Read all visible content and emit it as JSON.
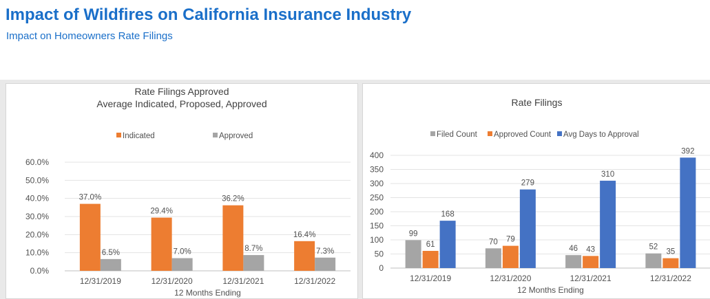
{
  "header": {
    "title": "Impact of Wildfires on California Insurance Industry",
    "subtitle": "Impact on Homeowners Rate Filings"
  },
  "colors": {
    "indicated": "#ed7d31",
    "approved_gray": "#a5a5a5",
    "avg_days": "#4472c4",
    "title_blue": "#1a6fc9"
  },
  "chart_data": [
    {
      "type": "bar",
      "title": "Rate Filings Approved",
      "subtitle": "Average Indicated, Proposed, Approved",
      "xlabel": "12 Months Ending",
      "ylabel": "",
      "categories": [
        "12/31/2019",
        "12/31/2020",
        "12/31/2021",
        "12/31/2022"
      ],
      "series": [
        {
          "name": "Indicated",
          "values": [
            37.0,
            29.4,
            36.2,
            16.4
          ],
          "labels": [
            "37.0%",
            "29.4%",
            "36.2%",
            "16.4%"
          ]
        },
        {
          "name": "Approved",
          "values": [
            6.5,
            7.0,
            8.7,
            7.3
          ],
          "labels": [
            "6.5%",
            "7.0%",
            "8.7%",
            "7.3%"
          ]
        }
      ],
      "ylim": [
        0,
        60
      ],
      "yticks": [
        "0.0%",
        "10.0%",
        "20.0%",
        "30.0%",
        "40.0%",
        "50.0%",
        "60.0%"
      ],
      "grid": true,
      "legend": "top-center"
    },
    {
      "type": "bar",
      "title": "Rate Filings",
      "xlabel": "12 Months Ending",
      "ylabel": "",
      "categories": [
        "12/31/2019",
        "12/31/2020",
        "12/31/2021",
        "12/31/2022"
      ],
      "series": [
        {
          "name": "Filed Count",
          "values": [
            99,
            70,
            46,
            52
          ],
          "labels": [
            "99",
            "70",
            "46",
            "52"
          ]
        },
        {
          "name": "Approved Count",
          "values": [
            61,
            79,
            43,
            35
          ],
          "labels": [
            "61",
            "79",
            "43",
            "35"
          ]
        },
        {
          "name": "Avg Days to Approval",
          "values": [
            168,
            279,
            310,
            392
          ],
          "labels": [
            "168",
            "279",
            "310",
            "392"
          ]
        }
      ],
      "ylim": [
        0,
        400
      ],
      "yticks": [
        "0",
        "50",
        "100",
        "150",
        "200",
        "250",
        "300",
        "350",
        "400"
      ],
      "grid": true,
      "legend": "top-center"
    }
  ]
}
